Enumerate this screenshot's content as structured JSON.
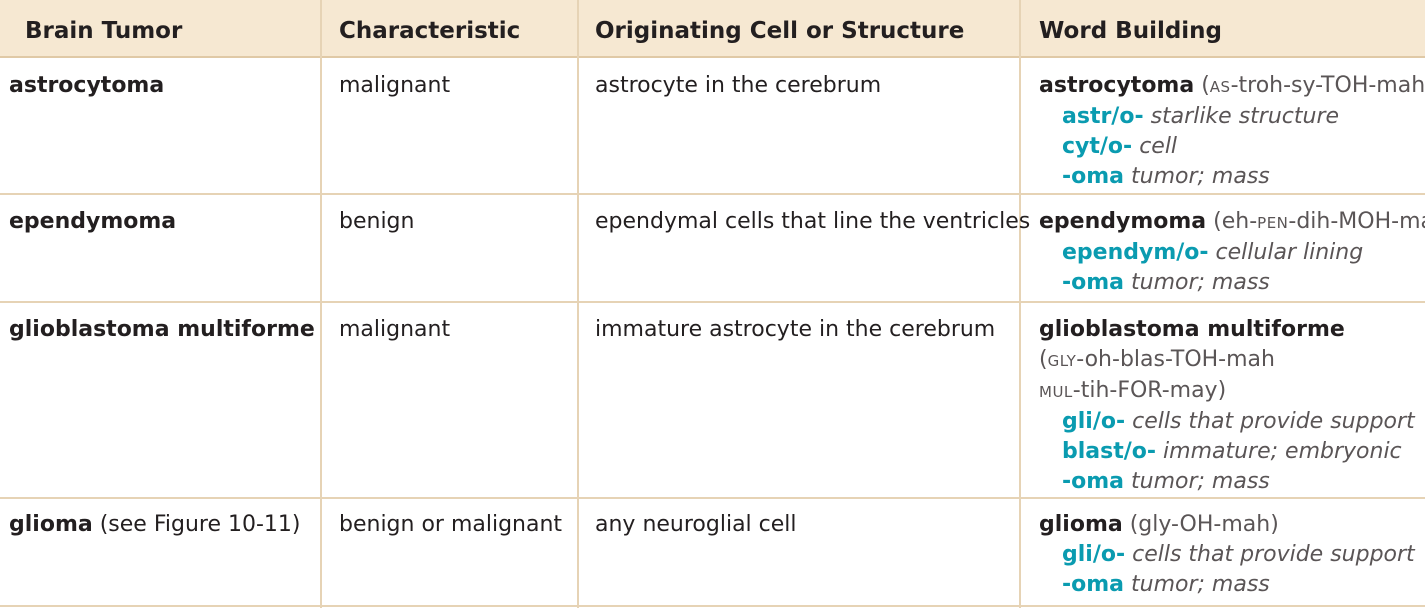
{
  "header": {
    "col1": "Brain Tumor",
    "col2": "Characteristic",
    "col3": "Originating Cell or Structure",
    "col4": "Word Building"
  },
  "rows": [
    {
      "tumor": "astrocytoma",
      "tumor_note": "",
      "characteristic": "malignant",
      "origin": "astrocyte in the cerebrum",
      "term": "astrocytoma",
      "pron_open": " (",
      "pron_sc1": "AS",
      "pron_rest1": "-troh-sy-TOH-mah)",
      "parts": [
        {
          "stem": "astr/o-",
          "def": "starlike structure"
        },
        {
          "stem": "cyt/o-",
          "def": "cell"
        },
        {
          "stem": "-oma",
          "def": "tumor; mass"
        }
      ]
    },
    {
      "tumor": "ependymoma",
      "tumor_note": "",
      "characteristic": "benign",
      "origin": "ependymal cells that line the ventricles",
      "term": "ependymoma",
      "pron_open": " (eh-",
      "pron_sc1": "PEN",
      "pron_rest1": "-dih-MOH-mah)",
      "parts": [
        {
          "stem": "ependym/o-",
          "def": "cellular lining"
        },
        {
          "stem": "-oma",
          "def": "tumor; mass"
        }
      ]
    },
    {
      "tumor": "glioblastoma multiforme",
      "tumor_note": "",
      "characteristic": "malignant",
      "origin": "immature astrocyte in the cerebrum",
      "term": "glioblastoma multiforme",
      "pron_line1_open": "(",
      "pron_line1_sc": "GLY",
      "pron_line1_rest": "-oh-blas-TOH-mah",
      "pron_line2_sc": "MUL",
      "pron_line2_rest": "-tih-FOR-may)",
      "parts": [
        {
          "stem": "gli/o-",
          "def": "cells that provide support"
        },
        {
          "stem": "blast/o-",
          "def": "immature; embryonic"
        },
        {
          "stem": "-oma",
          "def": "tumor; mass"
        }
      ]
    },
    {
      "tumor": "glioma",
      "tumor_note": " (see Figure 10-11)",
      "characteristic": "benign or malignant",
      "origin": "any neuroglial cell",
      "term": "glioma",
      "pron": " (gly-OH-mah)",
      "parts": [
        {
          "stem": "gli/o-",
          "def": "cells that provide support"
        },
        {
          "stem": "-oma",
          "def": "tumor; mass"
        }
      ]
    }
  ]
}
